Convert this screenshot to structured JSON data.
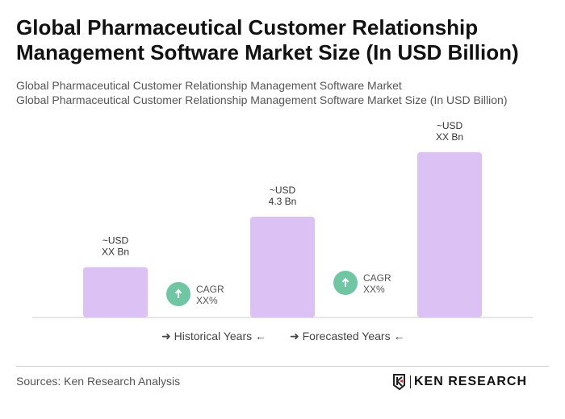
{
  "title": "Global Pharmaceutical Customer Relationship Management Software Market Size (In USD Billion)",
  "subtitle_1": "Global Pharmaceutical Customer Relationship Management Software Market",
  "subtitle_2": "Global Pharmaceutical Customer Relationship Management Software Market Size (In USD Billion)",
  "chart_data": {
    "type": "bar",
    "categories": [
      "",
      "",
      ""
    ],
    "values": [
      2.15,
      4.3,
      7.06
    ],
    "data_labels": [
      [
        "~USD",
        "XX Bn"
      ],
      [
        "~USD",
        "4.3 Bn"
      ],
      [
        "~USD",
        "XX Bn"
      ]
    ],
    "bar_color": "#dcc1f5",
    "cagr_annotations": [
      [
        "CAGR",
        "XX%"
      ],
      [
        "CAGR",
        "XX%"
      ]
    ],
    "cagr_color": "#6fc6a3",
    "grid": false
  },
  "legend": {
    "historical": "Historical Years",
    "forecasted": "Forecasted Years"
  },
  "source": "Sources: Ken Research Analysis",
  "logo_text": "KEN RESEARCH"
}
